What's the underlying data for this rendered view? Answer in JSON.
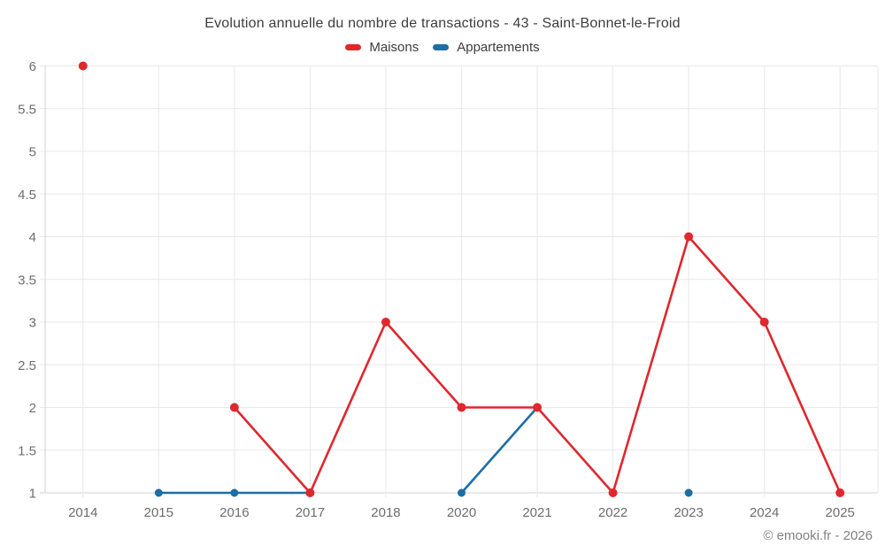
{
  "page": {
    "title": "Evolution annuelle du nombre de transactions - 43 - Saint-Bonnet-le-Froid",
    "watermark": "© emooki.fr - 2026"
  },
  "colors": {
    "maisons": "#de282e",
    "appartements": "#1b6ea6",
    "grid": "#e8e8e8",
    "axis_line": "#d2d2d2",
    "tick_text": "#6d6d6d",
    "title_text": "#3d3d3d",
    "watermark_text": "#818181"
  },
  "chart_data": {
    "type": "line",
    "title": "Evolution annuelle du nombre de transactions - 43 - Saint-Bonnet-le-Froid",
    "categories": [
      "2014",
      "2015",
      "2016",
      "2017",
      "2018",
      "2020",
      "2021",
      "2022",
      "2023",
      "2024",
      "2025"
    ],
    "series": [
      {
        "name": "Maisons",
        "color": "#de282e",
        "values": [
          6,
          null,
          2,
          1,
          3,
          2,
          2,
          1,
          4,
          3,
          1
        ]
      },
      {
        "name": "Appartements",
        "color": "#1b6ea6",
        "values": [
          null,
          1,
          1,
          1,
          null,
          1,
          2,
          null,
          1,
          null,
          null
        ]
      }
    ],
    "ylim": [
      1,
      6
    ],
    "y_ticks": [
      1,
      1.5,
      2,
      2.5,
      3,
      3.5,
      4,
      4.5,
      5,
      5.5,
      6
    ],
    "grid": true,
    "legend_position": "top",
    "connect_nulls": false
  }
}
